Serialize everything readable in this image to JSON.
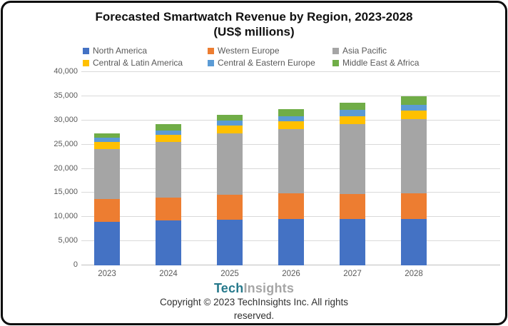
{
  "title": {
    "line1": "Forecasted Smartwatch Revenue by Region, 2023-2028",
    "line2": "(US$ millions)"
  },
  "chart_data": {
    "type": "bar",
    "stacked": true,
    "title": "Forecasted Smartwatch Revenue by Region, 2023-2028 (US$ millions)",
    "xlabel": "",
    "ylabel": "",
    "categories": [
      "2023",
      "2024",
      "2025",
      "2026",
      "2027",
      "2028"
    ],
    "series": [
      {
        "name": "North America",
        "color": "#4472C4",
        "values": [
          9000,
          9300,
          9450,
          9550,
          9600,
          9650
        ]
      },
      {
        "name": "Western Europe",
        "color": "#ED7D31",
        "values": [
          4700,
          4700,
          5150,
          5350,
          5200,
          5250
        ]
      },
      {
        "name": "Asia Pacific",
        "color": "#A5A5A5",
        "values": [
          10300,
          11600,
          12700,
          13350,
          14500,
          15400
        ]
      },
      {
        "name": "Central & Latin America",
        "color": "#FFC000",
        "values": [
          1500,
          1400,
          1650,
          1500,
          1600,
          1700
        ]
      },
      {
        "name": "Central & Eastern Europe",
        "color": "#5B9BD5",
        "values": [
          900,
          900,
          1000,
          1150,
          1250,
          1250
        ]
      },
      {
        "name": "Middle East & Africa",
        "color": "#70AD47",
        "values": [
          900,
          1300,
          1250,
          1450,
          1550,
          1750
        ]
      }
    ],
    "totals_approx": [
      27300,
      29200,
      31200,
      32350,
      33700,
      35000
    ],
    "ylim": [
      0,
      40000
    ],
    "ytick_step": 5000,
    "ytick_labels": [
      "0",
      "5,000",
      "10,000",
      "15,000",
      "20,000",
      "25,000",
      "30,000",
      "35,000",
      "40,000"
    ],
    "grid": true,
    "legend_position": "top",
    "legend_rows": [
      [
        "North America",
        "Western Europe",
        "Asia Pacific"
      ],
      [
        "Central & Latin America",
        "Central & Eastern Europe",
        "Middle East & Africa"
      ]
    ]
  },
  "footer": {
    "logo_part1": "Tech",
    "logo_part2": "Insights",
    "copyright": "Copyright © 2023 TechInsights Inc.  All rights reserved."
  },
  "colors": {
    "axis_text": "#595959",
    "gridline": "#D9D9D9",
    "axis_line": "#BFBFBF",
    "logo_teal": "#26798B",
    "logo_gray": "#A6A6A6",
    "border": "#0D0D0D"
  }
}
